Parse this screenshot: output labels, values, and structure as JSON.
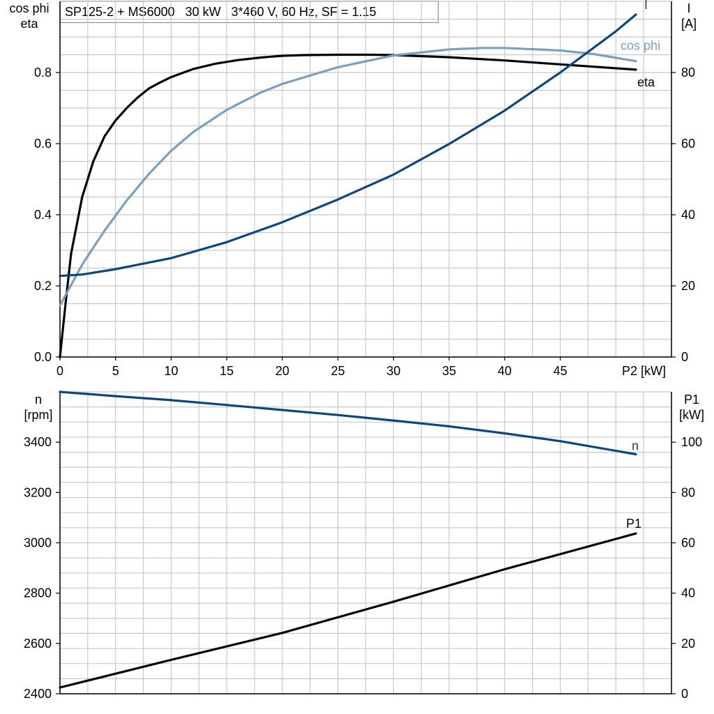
{
  "title": "SP125-2 + MS6000   30 kW   3*460 V, 60 Hz, SF = 1.15",
  "colors": {
    "eta": "#000000",
    "cos_phi": "#7a9fbf",
    "I": "#0d4580",
    "n": "#0d4580",
    "P1": "#000000",
    "grid": "#c8c8c8"
  },
  "chart_data": [
    {
      "type": "line",
      "xlabel": "P2 [kW]",
      "xlim": [
        0,
        55
      ],
      "x_ticks": [
        "0",
        "5",
        "10",
        "15",
        "20",
        "25",
        "30",
        "35",
        "40",
        "45"
      ],
      "left_axis": {
        "label_lines": [
          "cos phi",
          "eta"
        ],
        "ylim": [
          0,
          1.0
        ],
        "ticks": [
          "0.0",
          "0.2",
          "0.4",
          "0.6",
          "0.8"
        ]
      },
      "right_axis": {
        "label_lines": [
          "I",
          "[A]"
        ],
        "ylim": [
          0,
          100
        ],
        "ticks": [
          "0",
          "20",
          "40",
          "60",
          "80"
        ]
      },
      "grid": true,
      "series": [
        {
          "name": "eta",
          "axis": "left",
          "x": [
            0,
            0.5,
            1,
            2,
            3,
            4,
            5,
            6,
            7,
            8,
            9,
            10,
            12,
            14,
            16,
            18,
            20,
            22,
            25,
            28,
            30,
            35,
            40,
            45,
            51.8
          ],
          "y": [
            0,
            0.15,
            0.29,
            0.45,
            0.55,
            0.62,
            0.665,
            0.7,
            0.73,
            0.755,
            0.772,
            0.787,
            0.81,
            0.825,
            0.835,
            0.842,
            0.847,
            0.849,
            0.85,
            0.85,
            0.849,
            0.843,
            0.834,
            0.823,
            0.808
          ]
        },
        {
          "name": "cos phi",
          "axis": "left",
          "x": [
            0,
            2,
            4,
            6,
            8,
            10,
            12,
            15,
            18,
            20,
            25,
            30,
            35,
            38,
            40,
            45,
            48,
            51.8
          ],
          "y": [
            0.145,
            0.26,
            0.355,
            0.44,
            0.515,
            0.58,
            0.633,
            0.695,
            0.743,
            0.768,
            0.815,
            0.848,
            0.865,
            0.869,
            0.869,
            0.862,
            0.852,
            0.832
          ]
        },
        {
          "name": "I",
          "axis": "right",
          "x": [
            0,
            2,
            5,
            10,
            15,
            20,
            25,
            30,
            35,
            40,
            45,
            50,
            51.8
          ],
          "y": [
            22.8,
            23.2,
            24.7,
            27.8,
            32.3,
            37.9,
            44.3,
            51.3,
            59.9,
            69.3,
            80.0,
            91.6,
            96.3
          ]
        }
      ]
    },
    {
      "type": "line",
      "xlim": [
        0,
        55
      ],
      "left_axis": {
        "label_lines": [
          "n",
          "[rpm]"
        ],
        "ylim": [
          2400,
          3600
        ],
        "ticks": [
          "2400",
          "2600",
          "2800",
          "3000",
          "3200",
          "3400"
        ]
      },
      "right_axis": {
        "label_lines": [
          "P1",
          "[kW]"
        ],
        "ylim": [
          0,
          120
        ],
        "ticks": [
          "0",
          "20",
          "40",
          "60",
          "80",
          "100"
        ]
      },
      "grid": true,
      "series": [
        {
          "name": "n",
          "axis": "left",
          "x": [
            0,
            5,
            10,
            15,
            20,
            25,
            30,
            35,
            40,
            45,
            51.8
          ],
          "y": [
            3600,
            3583,
            3567,
            3548,
            3528,
            3508,
            3486,
            3463,
            3435,
            3404,
            3352
          ]
        },
        {
          "name": "P1",
          "axis": "right",
          "x": [
            0,
            10,
            20,
            30,
            40,
            51.8
          ],
          "y": [
            2.5,
            13.5,
            24.2,
            36.6,
            49.5,
            63.7
          ]
        }
      ]
    }
  ]
}
